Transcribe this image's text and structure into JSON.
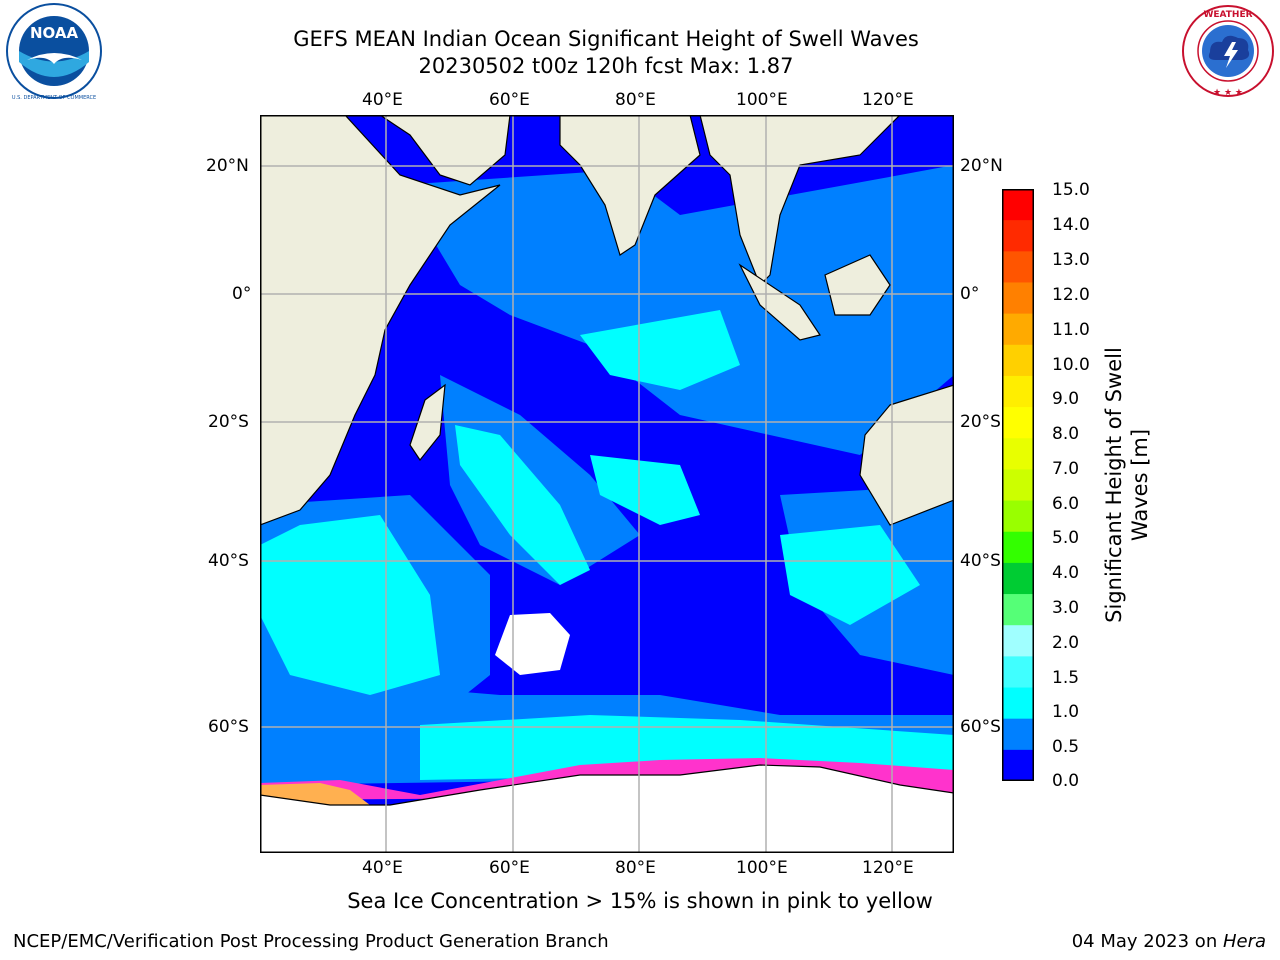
{
  "header": {
    "title": "GEFS MEAN Indian Ocean Significant Height of Swell Waves",
    "subtitle": "20230502 t00z 120h fcst   Max: 1.87"
  },
  "logos": {
    "left": {
      "text_outer": "NATIONAL OCEANIC AND ATMOSPHERIC ADMINISTRATION",
      "text_inner": "NOAA",
      "text_bottom": "U.S. DEPARTMENT OF COMMERCE",
      "color": "#0a4f9f"
    },
    "right": {
      "text_outer": "NATIONAL WEATHER SERVICE",
      "color": "#c8102e"
    }
  },
  "map": {
    "lon_labels": [
      "40°E",
      "60°E",
      "80°E",
      "100°E",
      "120°E"
    ],
    "lat_labels_left": [
      "20°N",
      "0°",
      "20°S",
      "40°S",
      "60°S"
    ],
    "lat_labels_right": [
      "20°N",
      "0°",
      "20°S",
      "40°S",
      "60°S"
    ],
    "colors": {
      "land": "#eeeedd",
      "ice": "#ffffff",
      "c0": "#0000ff",
      "c1": "#0080ff",
      "c2": "#00ffff",
      "c3": "#40ffff",
      "ice_edge": "#ff33cc",
      "ice_yellow": "#ffb050"
    }
  },
  "colorbar": {
    "label": "Significant Height of Swell Waves [m]",
    "label_line1": "Significant Height of Swell",
    "label_line2": "Waves [m]",
    "ticks": [
      "15.0",
      "14.0",
      "13.0",
      "12.0",
      "11.0",
      "10.0",
      "9.0",
      "8.0",
      "7.0",
      "6.0",
      "5.0",
      "4.0",
      "3.0",
      "2.0",
      "1.5",
      "1.0",
      "0.5",
      "0.0"
    ],
    "colors_top_to_bottom": [
      "#ff0000",
      "#ff2a00",
      "#ff5500",
      "#ff8000",
      "#ffaa00",
      "#ffd000",
      "#ffee00",
      "#ffff00",
      "#e8ff00",
      "#ccff00",
      "#99ff00",
      "#33ff00",
      "#00cc33",
      "#55ff77",
      "#a0ffff",
      "#40ffff",
      "#00ffff",
      "#0080ff",
      "#0000ff"
    ]
  },
  "caption": "Sea Ice Concentration > 15% is shown in pink to yellow",
  "footer": {
    "left": "NCEP/EMC/Verification Post Processing Product Generation Branch",
    "right_prefix": "04 May 2023 on ",
    "right_italic": "Hera"
  }
}
